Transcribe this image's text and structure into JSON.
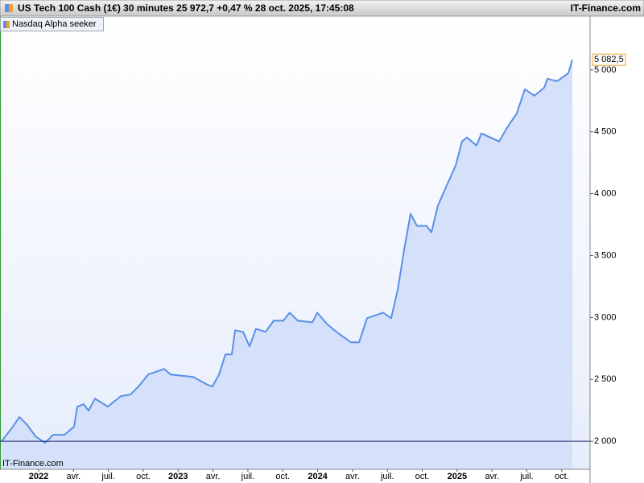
{
  "chart_data": {
    "type": "line",
    "title": "US Tech 100 Cash (1€) 30 minutes 25 972,7 +0,47 % 28 oct. 2025, 17:45:08",
    "source": "IT-Finance.com",
    "watermark": "IT-Finance.com",
    "x": [
      2021.735,
      2021.815,
      2021.862,
      2021.919,
      2021.977,
      2022.046,
      2022.104,
      2022.185,
      2022.254,
      2022.277,
      2022.323,
      2022.358,
      2022.404,
      2022.496,
      2022.589,
      2022.658,
      2022.716,
      2022.762,
      2022.785,
      2022.9,
      2022.946,
      2023.108,
      2023.212,
      2023.246,
      2023.293,
      2023.339,
      2023.385,
      2023.408,
      2023.466,
      2023.512,
      2023.558,
      2023.627,
      2023.685,
      2023.754,
      2023.8,
      2023.858,
      2023.962,
      2023.997,
      2024.066,
      2024.135,
      2024.239,
      2024.297,
      2024.354,
      2024.47,
      2024.527,
      2024.574,
      2024.62,
      2024.666,
      2024.712,
      2024.781,
      2024.816,
      2024.862,
      2024.92,
      2024.989,
      2025.035,
      2025.07,
      2025.139,
      2025.174,
      2025.301,
      2025.358,
      2025.428,
      2025.485,
      2025.555,
      2025.624,
      2025.647,
      2025.716,
      2025.797,
      2025.826
    ],
    "series": [
      {
        "name": "Nasdaq Alpha seeker",
        "color": "#5b8fe6",
        "values": [
          2000,
          2117,
          2195,
          2130,
          2039,
          1987,
          2052,
          2052,
          2117,
          2279,
          2299,
          2247,
          2344,
          2279,
          2364,
          2377,
          2442,
          2506,
          2539,
          2584,
          2539,
          2519,
          2455,
          2442,
          2539,
          2701,
          2701,
          2896,
          2883,
          2766,
          2909,
          2883,
          2974,
          2974,
          3039,
          2974,
          2961,
          3039,
          2948,
          2883,
          2799,
          2799,
          2994,
          3039,
          2994,
          3221,
          3545,
          3838,
          3740,
          3740,
          3688,
          3903,
          4052,
          4227,
          4422,
          4455,
          4390,
          4487,
          4422,
          4532,
          4649,
          4844,
          4792,
          4857,
          4929,
          4909,
          4974,
          5082.5
        ]
      }
    ],
    "last_value": {
      "value": 5082.5,
      "label": "5 082,5"
    },
    "last_value_color": "#f0a030",
    "area_color": "#d5e1fa",
    "reference_line": 2000,
    "reference_color": "#1a2a6a",
    "xlim": [
      2021.723,
      2025.953
    ],
    "ylim": [
      1773,
      5435
    ],
    "xticks": [
      2022,
      {
        "value": 2022.25,
        "label": "avr."
      },
      {
        "value": 2022.5,
        "label": "juil."
      },
      {
        "value": 2022.75,
        "label": "oct."
      },
      2023,
      {
        "value": 2023.25,
        "label": "avr."
      },
      {
        "value": 2023.5,
        "label": "juil."
      },
      {
        "value": 2023.75,
        "label": "oct."
      },
      2024,
      {
        "value": 2024.25,
        "label": "avr."
      },
      {
        "value": 2024.5,
        "label": "juil."
      },
      {
        "value": 2024.75,
        "label": "oct."
      },
      2025,
      {
        "value": 2025.25,
        "label": "avr."
      },
      {
        "value": 2025.5,
        "label": "juil."
      },
      {
        "value": 2025.75,
        "label": "oct."
      }
    ],
    "yticks": [
      {
        "value": 2000,
        "label": "2 000"
      },
      {
        "value": 2500,
        "label": "2 500"
      },
      {
        "value": 3000,
        "label": "3 000"
      },
      {
        "value": 3500,
        "label": "3 500"
      },
      {
        "value": 4000,
        "label": "4 000"
      },
      {
        "value": 4500,
        "label": "4 500"
      },
      {
        "value": 5000,
        "label": "5 000"
      }
    ]
  }
}
